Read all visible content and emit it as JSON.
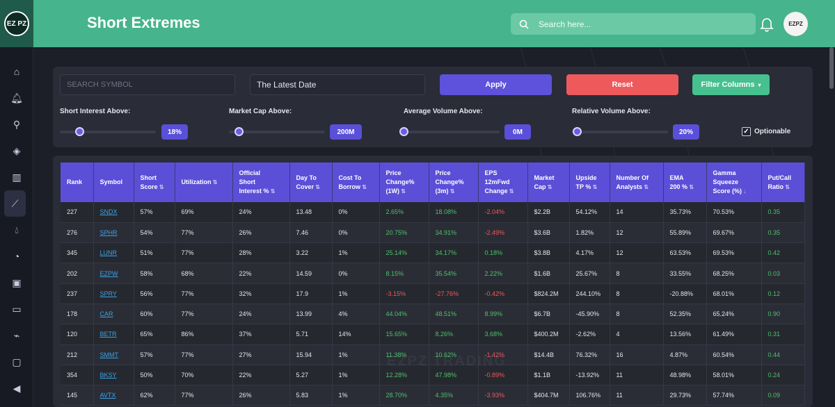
{
  "app": {
    "logo_text": "EZ PZ",
    "page_title": "Short Extremes",
    "search_placeholder": "Search here...",
    "avatar_text": "EZPZ"
  },
  "sidebar": {
    "items": [
      {
        "icon": "home-icon"
      },
      {
        "icon": "bell-icon"
      },
      {
        "icon": "network-icon"
      },
      {
        "icon": "layers-icon"
      },
      {
        "icon": "bar-chart-icon"
      },
      {
        "icon": "line-chart-icon",
        "active": true
      },
      {
        "icon": "drop-icon"
      },
      {
        "icon": "gauge-icon"
      },
      {
        "icon": "briefcase-icon"
      },
      {
        "icon": "calendar-icon"
      },
      {
        "icon": "plug-icon"
      },
      {
        "icon": "folder-icon"
      },
      {
        "icon": "megaphone-icon"
      }
    ]
  },
  "filters": {
    "symbol_placeholder": "SEARCH SYMBOL",
    "date_value": "The Latest Date",
    "apply_label": "Apply",
    "reset_label": "Reset",
    "filter_columns_label": "Filter Columns",
    "short_interest_label": "Short Interest Above:",
    "short_interest_value": "18%",
    "short_interest_fraction": 0.2,
    "market_cap_label": "Market Cap Above:",
    "market_cap_value": "200M",
    "market_cap_fraction": 0.1,
    "avg_volume_label": "Average Volume Above:",
    "avg_volume_value": "0M",
    "avg_volume_fraction": 0.0,
    "rel_volume_label": "Relative Volume Above:",
    "rel_volume_value": "20%",
    "rel_volume_fraction": 0.05,
    "optionable_label": "Optionable",
    "optionable_checked": true
  },
  "table": {
    "watermark": "EZPZ TRADING",
    "headers": [
      [
        "Rank"
      ],
      [
        "Symbol"
      ],
      [
        "Short",
        "Score"
      ],
      [
        "Utilization"
      ],
      [
        "Official",
        "Short",
        "Interest %"
      ],
      [
        "Day To",
        "Cover"
      ],
      [
        "Cost To",
        "Borrow"
      ],
      [
        "Price",
        "Change%",
        "(1W)"
      ],
      [
        "Price",
        "Change%",
        "(3m)"
      ],
      [
        "EPS",
        "12mFwd",
        "Change"
      ],
      [
        "Market",
        "Cap"
      ],
      [
        "Upside",
        "TP %"
      ],
      [
        "Number Of",
        "Analysts"
      ],
      [
        "EMA",
        "200 %"
      ],
      [
        "Gamma",
        "Squeeze",
        "Score (%)"
      ],
      [
        "Put/Call",
        "Ratio"
      ]
    ],
    "rows": [
      [
        "227",
        "SNDX",
        "57%",
        "69%",
        "24%",
        "13.48",
        "0%",
        "2.65%",
        "18.08%",
        "-2.04%",
        "$2.2B",
        "54.12%",
        "14",
        "35.73%",
        "70.53%",
        "0.35"
      ],
      [
        "276",
        "SPHR",
        "54%",
        "77%",
        "26%",
        "7.46",
        "0%",
        "20.75%",
        "34.91%",
        "-2.49%",
        "$3.6B",
        "1.82%",
        "12",
        "55.89%",
        "69.67%",
        "0.35"
      ],
      [
        "345",
        "LUNR",
        "51%",
        "77%",
        "28%",
        "3.22",
        "1%",
        "25.14%",
        "34.17%",
        "0.18%",
        "$3.8B",
        "4.17%",
        "12",
        "63.53%",
        "69.53%",
        "0.42"
      ],
      [
        "202",
        "EZPW",
        "58%",
        "68%",
        "22%",
        "14.59",
        "0%",
        "8.15%",
        "35.54%",
        "2.22%",
        "$1.6B",
        "25.67%",
        "8",
        "33.55%",
        "68.25%",
        "0.03"
      ],
      [
        "237",
        "SPRY",
        "56%",
        "77%",
        "32%",
        "17.9",
        "1%",
        "-3.15%",
        "-27.76%",
        "-0.42%",
        "$824.2M",
        "244.10%",
        "8",
        "-20.88%",
        "68.01%",
        "0.12"
      ],
      [
        "178",
        "CAR",
        "60%",
        "77%",
        "24%",
        "13.99",
        "4%",
        "44.04%",
        "48.51%",
        "8.99%",
        "$6.7B",
        "-45.90%",
        "8",
        "52.35%",
        "65.24%",
        "0.90"
      ],
      [
        "120",
        "BETR",
        "65%",
        "86%",
        "37%",
        "5.71",
        "14%",
        "15.65%",
        "8.26%",
        "3.68%",
        "$400.2M",
        "-2.62%",
        "4",
        "13.56%",
        "61.49%",
        "0.31"
      ],
      [
        "212",
        "SMMT",
        "57%",
        "77%",
        "27%",
        "15.94",
        "1%",
        "11.38%",
        "10.62%",
        "-1.42%",
        "$14.4B",
        "76.32%",
        "16",
        "4.87%",
        "60.54%",
        "0.44"
      ],
      [
        "354",
        "BKSY",
        "50%",
        "70%",
        "22%",
        "5.27",
        "1%",
        "12.28%",
        "47.98%",
        "-0.89%",
        "$1.1B",
        "-13.92%",
        "11",
        "48.98%",
        "58.01%",
        "0.24"
      ],
      [
        "145",
        "AVTX",
        "62%",
        "77%",
        "26%",
        "5.83",
        "1%",
        "28.70%",
        "4.35%",
        "-3.93%",
        "$404.7M",
        "106.76%",
        "11",
        "29.73%",
        "57.74%",
        "0.09"
      ]
    ]
  }
}
